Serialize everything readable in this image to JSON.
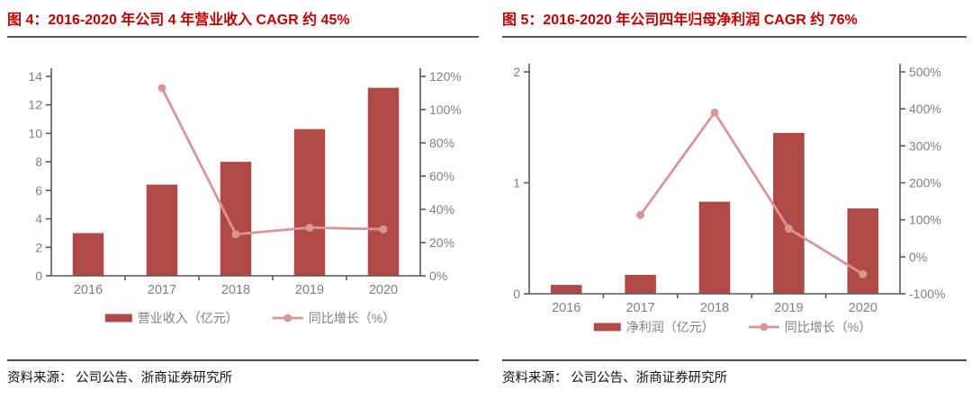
{
  "colors": {
    "bar": "#AF4A46",
    "line": "#D99694",
    "title": "#C00000",
    "axis": "#595959",
    "tick_label": "#808080",
    "legend_label": "#7F7F7F",
    "divider": "#595959",
    "source_divider": "#4A4A4A",
    "source_text": "#111111",
    "background": "#FFFFFF"
  },
  "panels": [
    {
      "title": "图 4：2016-2020 年公司 4 年营业收入 CAGR 约 45%",
      "source": "资料来源： 公司公告、浙商证券研究所"
    },
    {
      "title": "图 5：2016-2020 年公司四年归母净利润 CAGR 约 76%",
      "source": "资料来源： 公司公告、浙商证券研究所"
    }
  ],
  "chart_data": [
    {
      "type": "bar",
      "subtype": "bar+line combo, dual y-axes",
      "title": "图 4：2016-2020 年公司 4 年营业收入 CAGR 约 45%",
      "categories": [
        "2016",
        "2017",
        "2018",
        "2019",
        "2020"
      ],
      "series": [
        {
          "name": "营业收入（亿元）",
          "type": "bar",
          "axis": "left",
          "values": [
            3.0,
            6.4,
            8.0,
            10.3,
            13.2
          ]
        },
        {
          "name": "同比增长（%）",
          "type": "line",
          "axis": "right",
          "values": [
            null,
            113,
            25,
            29,
            28
          ]
        }
      ],
      "left_axis": {
        "min": 0,
        "max": 14,
        "step": 2,
        "suffix": ""
      },
      "right_axis": {
        "min": 0,
        "max": 120,
        "step": 20,
        "suffix": "%"
      },
      "grid": false,
      "legend_position": "bottom"
    },
    {
      "type": "bar",
      "subtype": "bar+line combo, dual y-axes",
      "title": "图 5：2016-2020 年公司四年归母净利润 CAGR 约 76%",
      "categories": [
        "2016",
        "2017",
        "2018",
        "2019",
        "2020"
      ],
      "series": [
        {
          "name": "净利润（亿元）",
          "type": "bar",
          "axis": "left",
          "values": [
            0.08,
            0.17,
            0.83,
            1.45,
            0.77
          ]
        },
        {
          "name": "同比增长（%）",
          "type": "line",
          "axis": "right",
          "values": [
            null,
            113,
            390,
            76,
            -47
          ]
        }
      ],
      "left_axis": {
        "min": 0,
        "max": 2,
        "step": 1,
        "suffix": ""
      },
      "right_axis": {
        "min": -100,
        "max": 500,
        "step": 100,
        "suffix": "%"
      },
      "grid": false,
      "legend_position": "bottom"
    }
  ]
}
